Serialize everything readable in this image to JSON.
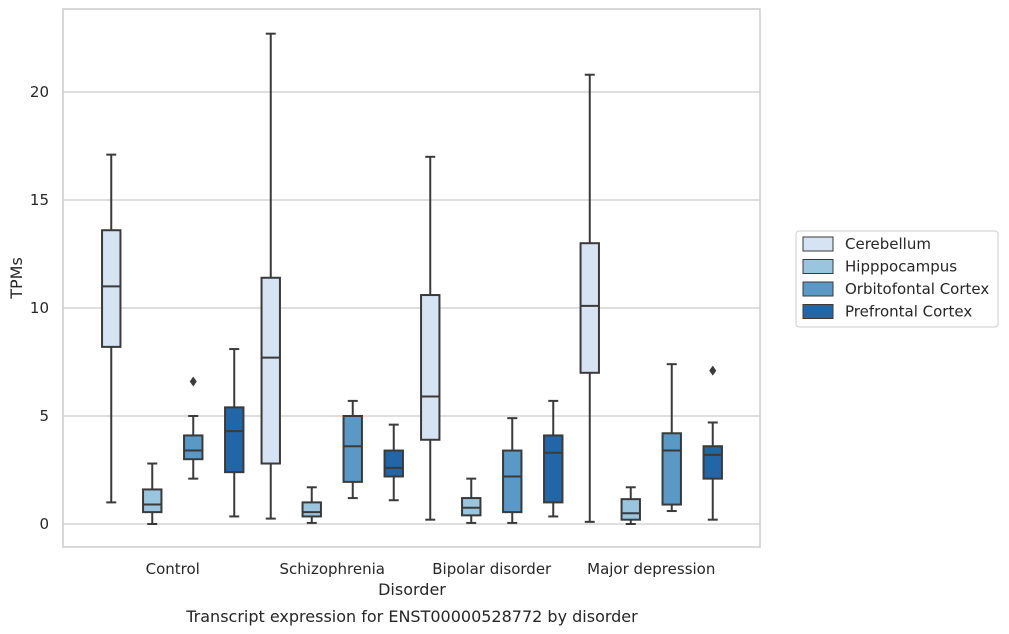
{
  "chart_data": {
    "type": "box",
    "title": "",
    "caption": "Transcript expression for ENST00000528772 by disorder",
    "xlabel": "Disorder",
    "ylabel": "TPMs",
    "ylim": [
      -1.1,
      23.9
    ],
    "yticks": [
      0,
      5,
      10,
      15,
      20
    ],
    "grid": "horizontal",
    "legend_position": "right-outside",
    "categories": [
      "Control",
      "Schizophrenia",
      "Bipolar disorder",
      "Major depression"
    ],
    "series": [
      {
        "name": "Cerebellum",
        "color": "#d5e3f2",
        "boxes": [
          {
            "whislo": 1.0,
            "q1": 8.2,
            "med": 11.0,
            "q3": 13.6,
            "whishi": 17.1,
            "fliers": []
          },
          {
            "whislo": 0.25,
            "q1": 2.8,
            "med": 7.7,
            "q3": 11.4,
            "whishi": 22.7,
            "fliers": []
          },
          {
            "whislo": 0.2,
            "q1": 3.9,
            "med": 5.9,
            "q3": 10.6,
            "whishi": 17.0,
            "fliers": []
          },
          {
            "whislo": 0.1,
            "q1": 7.0,
            "med": 10.1,
            "q3": 13.0,
            "whishi": 20.8,
            "fliers": []
          }
        ]
      },
      {
        "name": "Hipppocampus",
        "color": "#9ac5de",
        "boxes": [
          {
            "whislo": 0.0,
            "q1": 0.55,
            "med": 0.9,
            "q3": 1.6,
            "whishi": 2.8,
            "fliers": []
          },
          {
            "whislo": 0.05,
            "q1": 0.35,
            "med": 0.55,
            "q3": 1.0,
            "whishi": 1.7,
            "fliers": []
          },
          {
            "whislo": 0.05,
            "q1": 0.4,
            "med": 0.75,
            "q3": 1.2,
            "whishi": 2.1,
            "fliers": []
          },
          {
            "whislo": 0.0,
            "q1": 0.2,
            "med": 0.5,
            "q3": 1.15,
            "whishi": 1.7,
            "fliers": []
          }
        ]
      },
      {
        "name": "Orbitofontal Cortex",
        "color": "#5a98c6",
        "boxes": [
          {
            "whislo": 2.1,
            "q1": 3.0,
            "med": 3.4,
            "q3": 4.1,
            "whishi": 5.0,
            "fliers": [
              6.6
            ]
          },
          {
            "whislo": 1.2,
            "q1": 1.95,
            "med": 3.6,
            "q3": 5.0,
            "whishi": 5.7,
            "fliers": []
          },
          {
            "whislo": 0.05,
            "q1": 0.55,
            "med": 2.2,
            "q3": 3.4,
            "whishi": 4.9,
            "fliers": []
          },
          {
            "whislo": 0.6,
            "q1": 0.9,
            "med": 3.4,
            "q3": 4.2,
            "whishi": 7.4,
            "fliers": []
          }
        ]
      },
      {
        "name": "Prefrontal Cortex",
        "color": "#2366a8",
        "boxes": [
          {
            "whislo": 0.35,
            "q1": 2.4,
            "med": 4.3,
            "q3": 5.4,
            "whishi": 8.1,
            "fliers": []
          },
          {
            "whislo": 1.1,
            "q1": 2.2,
            "med": 2.6,
            "q3": 3.4,
            "whishi": 4.6,
            "fliers": []
          },
          {
            "whislo": 0.35,
            "q1": 1.0,
            "med": 3.3,
            "q3": 4.1,
            "whishi": 5.7,
            "fliers": []
          },
          {
            "whislo": 0.2,
            "q1": 2.1,
            "med": 3.2,
            "q3": 3.6,
            "whishi": 4.7,
            "fliers": [
              7.1
            ]
          }
        ]
      }
    ]
  }
}
